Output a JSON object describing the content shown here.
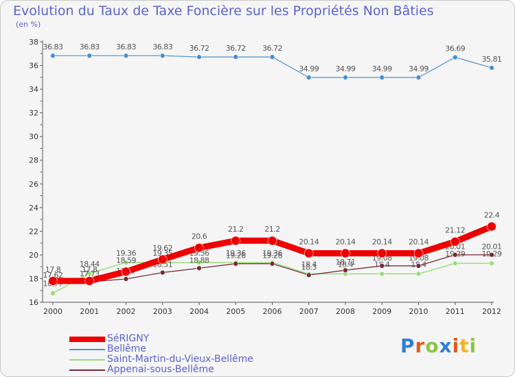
{
  "title": "Evolution du Taux de Taxe Foncière sur les Propriétés Non Bâties",
  "subtitle": "(en %)",
  "logo": {
    "letters": [
      {
        "char": "P",
        "color": "#2f7fd6"
      },
      {
        "char": "r",
        "color": "#e05a1c"
      },
      {
        "char": "o",
        "color": "#8cc540"
      },
      {
        "char": "x",
        "color": "#2f7fd6"
      },
      {
        "char": "i",
        "color": "#e05a1c"
      },
      {
        "char": "t",
        "color": "#f0b428"
      },
      {
        "char": "i",
        "color": "#8cc540"
      }
    ]
  },
  "chart_data": {
    "type": "line",
    "x": [
      "2000",
      "2001",
      "2002",
      "2003",
      "2004",
      "2005",
      "2006",
      "2007",
      "2008",
      "2009",
      "2010",
      "2011",
      "2012"
    ],
    "ylim": [
      16,
      38
    ],
    "yticks": [
      16,
      18,
      20,
      22,
      24,
      26,
      28,
      30,
      32,
      34,
      36,
      38
    ],
    "grid": false,
    "legend": "bottom-left",
    "series": [
      {
        "name": "Bellême",
        "color": "#4a90d0",
        "values": [
          36.83,
          36.83,
          36.83,
          36.83,
          36.72,
          36.72,
          36.72,
          34.99,
          34.99,
          34.99,
          34.99,
          36.69,
          35.81
        ],
        "labels": [
          "36.83",
          "36.83",
          "36.83",
          "36.83",
          "36.72",
          "36.72",
          "36.72",
          "34.99",
          "34.99",
          "34.99",
          "34.99",
          "36.69",
          "35.81"
        ]
      },
      {
        "name": "Saint-Martin-du-Vieux-Bellême",
        "color": "#99dd77",
        "values": [
          16.77,
          18.44,
          19.36,
          19.35,
          19.36,
          19.36,
          19.36,
          18.4,
          18.4,
          18.4,
          18.4,
          19.29,
          19.29
        ],
        "labels": [
          "16.77",
          "18.44",
          "19.36",
          "19.35",
          "19.36",
          "19.36",
          "19.36",
          "18.4",
          "18.4",
          "18.4",
          "18.4",
          "19.29",
          "19.29"
        ]
      },
      {
        "name": "Appenai-sous-Bellême",
        "color": "#7a2a35",
        "values": [
          17.62,
          17.73,
          17.97,
          18.51,
          18.88,
          19.26,
          19.26,
          18.3,
          18.71,
          19.08,
          19.08,
          20.01,
          20.01
        ],
        "labels": [
          "17.62",
          "17.73",
          "17.97",
          "18.51",
          "18.88",
          "19.26",
          "19.26",
          "18.3",
          "18.71",
          "19.08",
          "19.08",
          "20.01",
          "20.01"
        ]
      },
      {
        "name": "SéRIGNY",
        "color": "#ee0000",
        "values": [
          17.8,
          17.8,
          18.59,
          19.62,
          20.6,
          21.2,
          21.2,
          20.14,
          20.14,
          20.14,
          20.14,
          21.12,
          22.4
        ],
        "labels": [
          "17.8",
          "17.8",
          "18.59",
          "19.62",
          "20.6",
          "21.2",
          "21.2",
          "20.14",
          "20.14",
          "20.14",
          "20.14",
          "21.12",
          "22.4"
        ]
      }
    ]
  },
  "legend": [
    {
      "name": "SéRIGNY",
      "color": "#ee0000"
    },
    {
      "name": "Bellême",
      "color": "#4a90d0"
    },
    {
      "name": "Saint-Martin-du-Vieux-Bellême",
      "color": "#99dd77"
    },
    {
      "name": "Appenai-sous-Bellême",
      "color": "#7a2a35"
    }
  ]
}
